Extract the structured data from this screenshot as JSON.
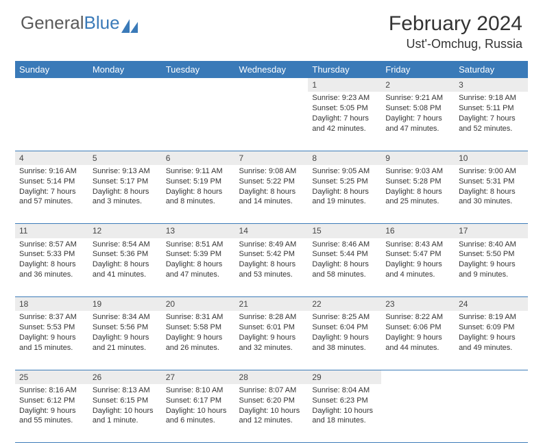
{
  "logo": {
    "text1": "General",
    "text2": "Blue"
  },
  "header": {
    "title": "February 2024",
    "location": "Ust'-Omchug, Russia"
  },
  "colors": {
    "brand": "#3a7ab8",
    "header_bg": "#3a7ab8",
    "daynum_bg": "#ececec"
  },
  "days_of_week": [
    "Sunday",
    "Monday",
    "Tuesday",
    "Wednesday",
    "Thursday",
    "Friday",
    "Saturday"
  ],
  "weeks": [
    {
      "nums": [
        "",
        "",
        "",
        "",
        "1",
        "2",
        "3"
      ],
      "cells": [
        null,
        null,
        null,
        null,
        {
          "sunrise": "Sunrise: 9:23 AM",
          "sunset": "Sunset: 5:05 PM",
          "day1": "Daylight: 7 hours",
          "day2": "and 42 minutes."
        },
        {
          "sunrise": "Sunrise: 9:21 AM",
          "sunset": "Sunset: 5:08 PM",
          "day1": "Daylight: 7 hours",
          "day2": "and 47 minutes."
        },
        {
          "sunrise": "Sunrise: 9:18 AM",
          "sunset": "Sunset: 5:11 PM",
          "day1": "Daylight: 7 hours",
          "day2": "and 52 minutes."
        }
      ]
    },
    {
      "nums": [
        "4",
        "5",
        "6",
        "7",
        "8",
        "9",
        "10"
      ],
      "cells": [
        {
          "sunrise": "Sunrise: 9:16 AM",
          "sunset": "Sunset: 5:14 PM",
          "day1": "Daylight: 7 hours",
          "day2": "and 57 minutes."
        },
        {
          "sunrise": "Sunrise: 9:13 AM",
          "sunset": "Sunset: 5:17 PM",
          "day1": "Daylight: 8 hours",
          "day2": "and 3 minutes."
        },
        {
          "sunrise": "Sunrise: 9:11 AM",
          "sunset": "Sunset: 5:19 PM",
          "day1": "Daylight: 8 hours",
          "day2": "and 8 minutes."
        },
        {
          "sunrise": "Sunrise: 9:08 AM",
          "sunset": "Sunset: 5:22 PM",
          "day1": "Daylight: 8 hours",
          "day2": "and 14 minutes."
        },
        {
          "sunrise": "Sunrise: 9:05 AM",
          "sunset": "Sunset: 5:25 PM",
          "day1": "Daylight: 8 hours",
          "day2": "and 19 minutes."
        },
        {
          "sunrise": "Sunrise: 9:03 AM",
          "sunset": "Sunset: 5:28 PM",
          "day1": "Daylight: 8 hours",
          "day2": "and 25 minutes."
        },
        {
          "sunrise": "Sunrise: 9:00 AM",
          "sunset": "Sunset: 5:31 PM",
          "day1": "Daylight: 8 hours",
          "day2": "and 30 minutes."
        }
      ]
    },
    {
      "nums": [
        "11",
        "12",
        "13",
        "14",
        "15",
        "16",
        "17"
      ],
      "cells": [
        {
          "sunrise": "Sunrise: 8:57 AM",
          "sunset": "Sunset: 5:33 PM",
          "day1": "Daylight: 8 hours",
          "day2": "and 36 minutes."
        },
        {
          "sunrise": "Sunrise: 8:54 AM",
          "sunset": "Sunset: 5:36 PM",
          "day1": "Daylight: 8 hours",
          "day2": "and 41 minutes."
        },
        {
          "sunrise": "Sunrise: 8:51 AM",
          "sunset": "Sunset: 5:39 PM",
          "day1": "Daylight: 8 hours",
          "day2": "and 47 minutes."
        },
        {
          "sunrise": "Sunrise: 8:49 AM",
          "sunset": "Sunset: 5:42 PM",
          "day1": "Daylight: 8 hours",
          "day2": "and 53 minutes."
        },
        {
          "sunrise": "Sunrise: 8:46 AM",
          "sunset": "Sunset: 5:44 PM",
          "day1": "Daylight: 8 hours",
          "day2": "and 58 minutes."
        },
        {
          "sunrise": "Sunrise: 8:43 AM",
          "sunset": "Sunset: 5:47 PM",
          "day1": "Daylight: 9 hours",
          "day2": "and 4 minutes."
        },
        {
          "sunrise": "Sunrise: 8:40 AM",
          "sunset": "Sunset: 5:50 PM",
          "day1": "Daylight: 9 hours",
          "day2": "and 9 minutes."
        }
      ]
    },
    {
      "nums": [
        "18",
        "19",
        "20",
        "21",
        "22",
        "23",
        "24"
      ],
      "cells": [
        {
          "sunrise": "Sunrise: 8:37 AM",
          "sunset": "Sunset: 5:53 PM",
          "day1": "Daylight: 9 hours",
          "day2": "and 15 minutes."
        },
        {
          "sunrise": "Sunrise: 8:34 AM",
          "sunset": "Sunset: 5:56 PM",
          "day1": "Daylight: 9 hours",
          "day2": "and 21 minutes."
        },
        {
          "sunrise": "Sunrise: 8:31 AM",
          "sunset": "Sunset: 5:58 PM",
          "day1": "Daylight: 9 hours",
          "day2": "and 26 minutes."
        },
        {
          "sunrise": "Sunrise: 8:28 AM",
          "sunset": "Sunset: 6:01 PM",
          "day1": "Daylight: 9 hours",
          "day2": "and 32 minutes."
        },
        {
          "sunrise": "Sunrise: 8:25 AM",
          "sunset": "Sunset: 6:04 PM",
          "day1": "Daylight: 9 hours",
          "day2": "and 38 minutes."
        },
        {
          "sunrise": "Sunrise: 8:22 AM",
          "sunset": "Sunset: 6:06 PM",
          "day1": "Daylight: 9 hours",
          "day2": "and 44 minutes."
        },
        {
          "sunrise": "Sunrise: 8:19 AM",
          "sunset": "Sunset: 6:09 PM",
          "day1": "Daylight: 9 hours",
          "day2": "and 49 minutes."
        }
      ]
    },
    {
      "nums": [
        "25",
        "26",
        "27",
        "28",
        "29",
        "",
        ""
      ],
      "cells": [
        {
          "sunrise": "Sunrise: 8:16 AM",
          "sunset": "Sunset: 6:12 PM",
          "day1": "Daylight: 9 hours",
          "day2": "and 55 minutes."
        },
        {
          "sunrise": "Sunrise: 8:13 AM",
          "sunset": "Sunset: 6:15 PM",
          "day1": "Daylight: 10 hours",
          "day2": "and 1 minute."
        },
        {
          "sunrise": "Sunrise: 8:10 AM",
          "sunset": "Sunset: 6:17 PM",
          "day1": "Daylight: 10 hours",
          "day2": "and 6 minutes."
        },
        {
          "sunrise": "Sunrise: 8:07 AM",
          "sunset": "Sunset: 6:20 PM",
          "day1": "Daylight: 10 hours",
          "day2": "and 12 minutes."
        },
        {
          "sunrise": "Sunrise: 8:04 AM",
          "sunset": "Sunset: 6:23 PM",
          "day1": "Daylight: 10 hours",
          "day2": "and 18 minutes."
        },
        null,
        null
      ]
    }
  ]
}
